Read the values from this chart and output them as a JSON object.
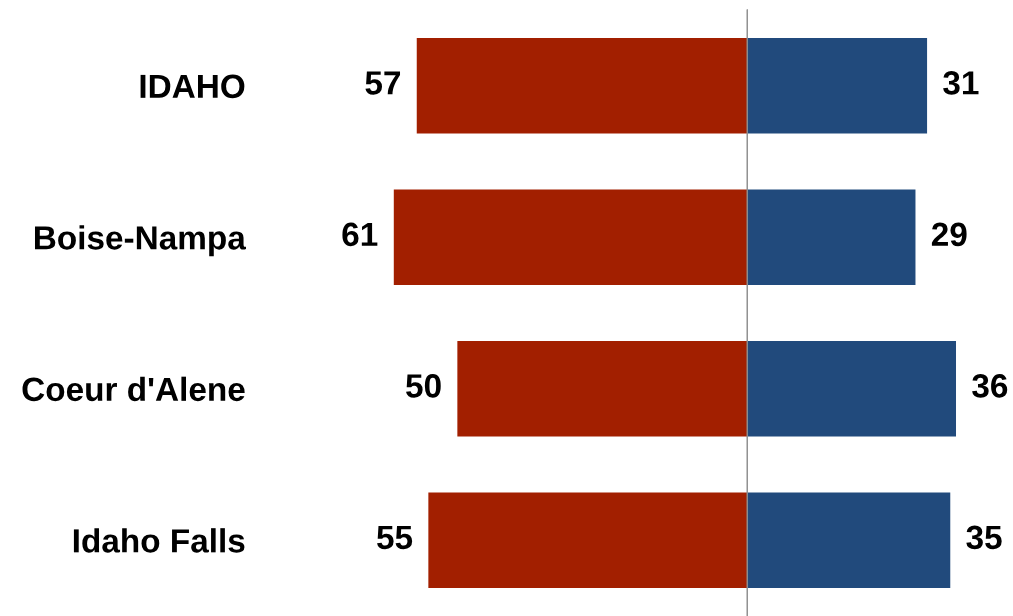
{
  "chart_data": [
    {
      "type": "bar",
      "orientation": "horizontal",
      "categories": [
        "IDAHO",
        "Boise-Nampa",
        "Coeur d'Alene",
        "Idaho Falls"
      ],
      "series": [
        {
          "color": "#a21f00",
          "values": [
            57,
            61,
            50,
            55
          ]
        }
      ],
      "xlim": [
        61,
        0
      ],
      "data_labels": true,
      "tick_labels": "y"
    },
    {
      "type": "bar",
      "orientation": "horizontal",
      "categories": [
        null,
        null,
        null,
        null
      ],
      "series": [
        {
          "color": "#214a7c",
          "values": [
            31,
            29,
            36,
            35
          ]
        }
      ],
      "data_labels": true,
      "tick_labels": false
    }
  ]
}
